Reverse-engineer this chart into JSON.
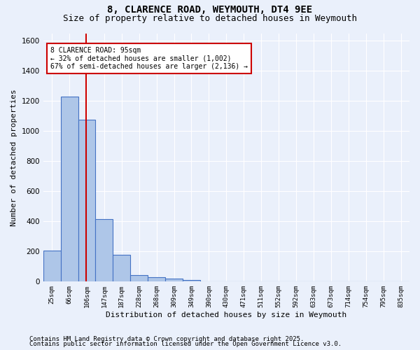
{
  "title_line1": "8, CLARENCE ROAD, WEYMOUTH, DT4 9EE",
  "title_line2": "Size of property relative to detached houses in Weymouth",
  "xlabel": "Distribution of detached houses by size in Weymouth",
  "ylabel": "Number of detached properties",
  "categories": [
    "25sqm",
    "66sqm",
    "106sqm",
    "147sqm",
    "187sqm",
    "228sqm",
    "268sqm",
    "309sqm",
    "349sqm",
    "390sqm",
    "430sqm",
    "471sqm",
    "511sqm",
    "552sqm",
    "592sqm",
    "633sqm",
    "673sqm",
    "714sqm",
    "754sqm",
    "795sqm",
    "835sqm"
  ],
  "values": [
    205,
    1230,
    1075,
    415,
    178,
    45,
    28,
    18,
    10,
    0,
    0,
    0,
    0,
    0,
    0,
    0,
    0,
    0,
    0,
    0,
    0
  ],
  "bar_color": "#aec6e8",
  "bar_edge_color": "#4472c4",
  "ylim": [
    0,
    1650
  ],
  "yticks": [
    0,
    200,
    400,
    600,
    800,
    1000,
    1200,
    1400,
    1600
  ],
  "vline_x": 1.97,
  "vline_color": "#cc0000",
  "annotation_box_text": "8 CLARENCE ROAD: 95sqm\n← 32% of detached houses are smaller (1,002)\n67% of semi-detached houses are larger (2,136) →",
  "box_edge_color": "#cc0000",
  "footnote1": "Contains HM Land Registry data © Crown copyright and database right 2025.",
  "footnote2": "Contains public sector information licensed under the Open Government Licence v3.0.",
  "bg_color": "#eaf0fb",
  "plot_bg_color": "#eaf0fb",
  "grid_color": "#ffffff",
  "title_fontsize": 10,
  "subtitle_fontsize": 9,
  "tick_fontsize": 6.5,
  "label_fontsize": 8,
  "footnote_fontsize": 6.5
}
